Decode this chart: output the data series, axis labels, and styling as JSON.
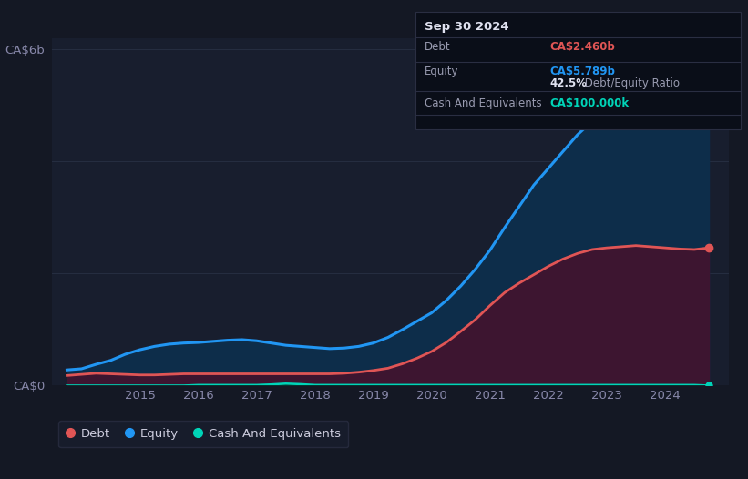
{
  "bg_color": "#141824",
  "plot_bg_color": "#181e2e",
  "grid_color": "#252d40",
  "years": [
    2013.75,
    2014.0,
    2014.25,
    2014.5,
    2014.75,
    2015.0,
    2015.25,
    2015.5,
    2015.75,
    2016.0,
    2016.25,
    2016.5,
    2016.75,
    2017.0,
    2017.25,
    2017.5,
    2017.75,
    2018.0,
    2018.25,
    2018.5,
    2018.75,
    2019.0,
    2019.25,
    2019.5,
    2019.75,
    2020.0,
    2020.25,
    2020.5,
    2020.75,
    2021.0,
    2021.25,
    2021.5,
    2021.75,
    2022.0,
    2022.25,
    2022.5,
    2022.75,
    2023.0,
    2023.25,
    2023.5,
    2023.75,
    2024.0,
    2024.25,
    2024.5,
    2024.75
  ],
  "equity": [
    0.28,
    0.3,
    0.38,
    0.45,
    0.56,
    0.64,
    0.7,
    0.74,
    0.76,
    0.77,
    0.79,
    0.81,
    0.82,
    0.8,
    0.76,
    0.72,
    0.7,
    0.68,
    0.66,
    0.67,
    0.7,
    0.76,
    0.86,
    1.0,
    1.15,
    1.3,
    1.52,
    1.78,
    2.08,
    2.42,
    2.82,
    3.2,
    3.58,
    3.88,
    4.18,
    4.48,
    4.72,
    4.88,
    4.98,
    5.08,
    5.18,
    5.32,
    5.52,
    5.75,
    5.789
  ],
  "debt": [
    0.18,
    0.2,
    0.22,
    0.21,
    0.2,
    0.19,
    0.19,
    0.2,
    0.21,
    0.21,
    0.21,
    0.21,
    0.21,
    0.21,
    0.21,
    0.21,
    0.21,
    0.21,
    0.21,
    0.22,
    0.24,
    0.27,
    0.31,
    0.39,
    0.49,
    0.61,
    0.77,
    0.97,
    1.18,
    1.43,
    1.66,
    1.83,
    1.98,
    2.13,
    2.26,
    2.36,
    2.43,
    2.46,
    2.48,
    2.5,
    2.48,
    2.46,
    2.44,
    2.43,
    2.46
  ],
  "cash": [
    0.0,
    0.0,
    0.0,
    0.0,
    0.0,
    0.0,
    0.0,
    0.0,
    0.0,
    0.01,
    0.01,
    0.01,
    0.01,
    0.01,
    0.02,
    0.035,
    0.025,
    0.01,
    0.01,
    0.01,
    0.01,
    0.01,
    0.01,
    0.01,
    0.01,
    0.01,
    0.01,
    0.01,
    0.01,
    0.01,
    0.01,
    0.01,
    0.01,
    0.01,
    0.01,
    0.01,
    0.01,
    0.01,
    0.01,
    0.01,
    0.01,
    0.01,
    0.01,
    0.01,
    0.0001
  ],
  "equity_line_color": "#2196f3",
  "equity_fill_color": "#0d2d4a",
  "debt_line_color": "#e05555",
  "debt_fill_color": "#3d1530",
  "cash_line_color": "#00d4b8",
  "cash_fill_color": "#003830",
  "ylim": [
    0,
    6.2
  ],
  "xlim_min": 2013.5,
  "xlim_max": 2025.1,
  "xticks": [
    2015,
    2016,
    2017,
    2018,
    2019,
    2020,
    2021,
    2022,
    2023,
    2024
  ],
  "legend_items": [
    "Debt",
    "Equity",
    "Cash And Equivalents"
  ],
  "legend_dot_colors": [
    "#e05555",
    "#2196f3",
    "#00d4b8"
  ],
  "info_box": {
    "title": "Sep 30 2024",
    "debt_label": "Debt",
    "debt_value": "CA$2.460b",
    "equity_label": "Equity",
    "equity_value": "CA$5.789b",
    "ratio_bold": "42.5%",
    "ratio_text": " Debt/Equity Ratio",
    "cash_label": "Cash And Equivalents",
    "cash_value": "CA$100.000k",
    "debt_color": "#e05555",
    "equity_color": "#2196f3",
    "cash_color": "#00d4b8",
    "text_color": "#999bb0",
    "bold_color": "#e0e2f0",
    "box_bg": "#0a0e18",
    "box_border": "#2a2e42"
  }
}
